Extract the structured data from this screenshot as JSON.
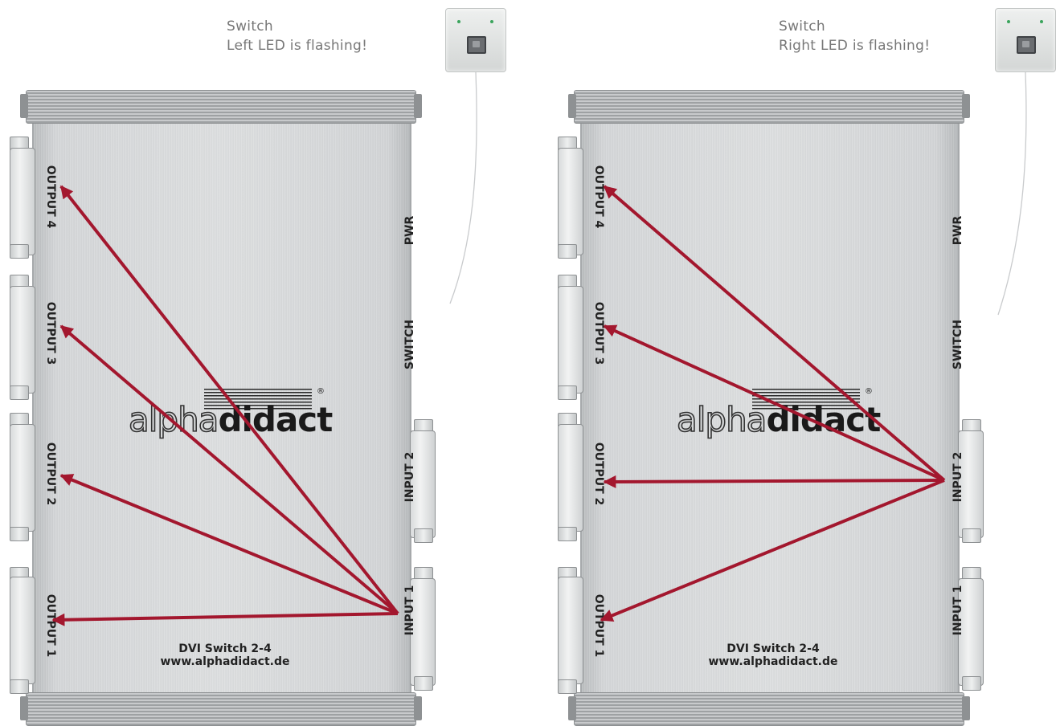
{
  "panels": [
    {
      "caption": {
        "line1": "Switch",
        "line2": "Left LED is flashing!"
      },
      "device": {
        "output_labels": [
          "OUTPUT 4",
          "OUTPUT 3",
          "OUTPUT 2",
          "OUTPUT 1"
        ],
        "right_labels": [
          "PWR",
          "SWITCH",
          "INPUT 2",
          "INPUT 1"
        ],
        "logo_light": "alpha",
        "logo_bold": "didact",
        "logo_reg": "®",
        "model_line1": "DVI Switch 2-4",
        "model_line2": "www.alphadidact.de"
      },
      "routing": {
        "source": "INPUT 1",
        "targets": [
          "OUTPUT 4",
          "OUTPUT 3",
          "OUTPUT 2",
          "OUTPUT 1"
        ]
      }
    },
    {
      "caption": {
        "line1": "Switch",
        "line2": "Right LED is flashing!"
      },
      "device": {
        "output_labels": [
          "OUTPUT 4",
          "OUTPUT 3",
          "OUTPUT 2",
          "OUTPUT 1"
        ],
        "right_labels": [
          "PWR",
          "SWITCH",
          "INPUT 2",
          "INPUT 1"
        ],
        "logo_light": "alpha",
        "logo_bold": "didact",
        "logo_reg": "®",
        "model_line1": "DVI Switch 2-4",
        "model_line2": "www.alphadidact.de"
      },
      "routing": {
        "source": "INPUT 2",
        "targets": [
          "OUTPUT 4",
          "OUTPUT 3",
          "OUTPUT 2",
          "OUTPUT 1"
        ]
      }
    }
  ],
  "colors": {
    "arrow": "#a3172e",
    "led": "#3aa45c",
    "label": "#222222",
    "caption": "#777777"
  }
}
